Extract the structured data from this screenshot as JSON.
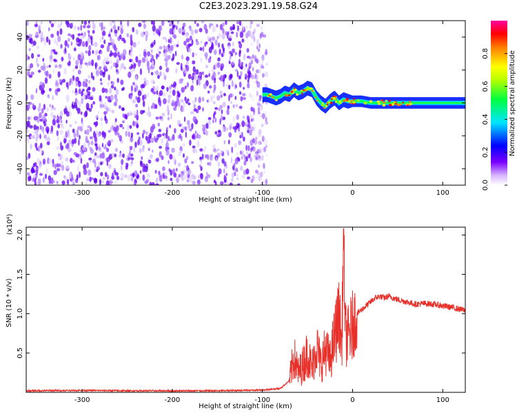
{
  "title": "C2E3.2023.291.19.58.G24",
  "colors": {
    "snr_line": "#e8302a",
    "speckle": "#6a00ff",
    "speckle_light": "#c9a8ff"
  },
  "chart_data": [
    {
      "type": "heatmap",
      "xlabel": "Height of straight line (km)",
      "ylabel": "Frequency (Hz)",
      "xlim": [
        -362,
        125
      ],
      "ylim": [
        -50,
        50
      ],
      "x_ticks": [
        -300,
        -200,
        -100,
        0,
        100
      ],
      "x_tick_labels": [
        "-300",
        "-200",
        "-100",
        "0",
        "100"
      ],
      "y_ticks": [
        -40,
        -20,
        0,
        20,
        40
      ],
      "y_tick_labels": [
        "-40",
        "-20",
        "0",
        "20",
        "40"
      ],
      "colorbar": {
        "label": "Normalized spectral amplitude",
        "range": [
          0,
          1
        ],
        "ticks": [
          0.0,
          0.2,
          0.4,
          0.6,
          0.8
        ],
        "tick_labels": [
          "0.0",
          "0.2",
          "0.4",
          "0.6",
          "0.8"
        ]
      },
      "noise_region_x": [
        -362,
        -95
      ],
      "signal_track": {
        "x": [
          -100,
          -95,
          -90,
          -85,
          -80,
          -75,
          -70,
          -65,
          -60,
          -55,
          -50,
          -45,
          -40,
          -35,
          -30,
          -25,
          -20,
          -15,
          -10,
          -5,
          0,
          10,
          20,
          40,
          60,
          80,
          100,
          125
        ],
        "freq": [
          5,
          5,
          4,
          3,
          4,
          6,
          5,
          8,
          6,
          7,
          9,
          8,
          3,
          0,
          -2,
          1,
          3,
          0,
          2,
          1,
          1,
          1,
          0,
          0,
          0,
          0,
          0,
          0
        ]
      },
      "grid": false
    },
    {
      "type": "line",
      "xlabel": "Height of straight line (km)",
      "ylabel": "SNR (10 * v/v)",
      "y_multiplier_label": "(x10⁴)",
      "xlim": [
        -362,
        125
      ],
      "ylim": [
        0,
        2.1
      ],
      "x_ticks": [
        -300,
        -200,
        -100,
        0,
        100
      ],
      "x_tick_labels": [
        "-300",
        "-200",
        "-100",
        "0",
        "100"
      ],
      "y_ticks": [
        0.5,
        1.0,
        1.5,
        2.0
      ],
      "y_tick_labels": [
        "0.5",
        "1.0",
        "1.5",
        "2.0"
      ],
      "series": [
        {
          "x": [
            -362,
            -300,
            -250,
            -200,
            -150,
            -100,
            -80,
            -70,
            -65,
            -60,
            -55,
            -50,
            -45,
            -40,
            -35,
            -30,
            -25,
            -20,
            -15,
            -12,
            -10,
            -8,
            -5,
            0,
            5,
            10,
            15,
            20,
            25,
            30,
            35,
            40,
            50,
            60,
            70,
            80,
            90,
            100,
            110,
            125
          ],
          "y": [
            0.02,
            0.025,
            0.02,
            0.02,
            0.02,
            0.03,
            0.05,
            0.15,
            0.45,
            0.25,
            0.35,
            0.5,
            0.3,
            0.6,
            0.35,
            0.55,
            0.4,
            0.7,
            1.0,
            0.6,
            2.05,
            0.75,
            0.7,
            0.85,
            1.0,
            1.05,
            1.1,
            1.15,
            1.2,
            1.22,
            1.2,
            1.22,
            1.18,
            1.15,
            1.12,
            1.13,
            1.12,
            1.1,
            1.08,
            1.04
          ]
        }
      ],
      "grid": false
    }
  ]
}
